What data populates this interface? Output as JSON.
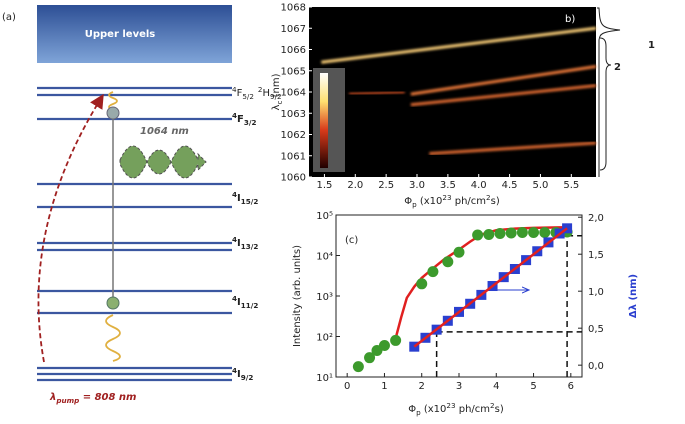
{
  "diagram": {
    "label": "(a)",
    "upper": "Upper levels",
    "emission": "1064 nm",
    "levels": [
      [
        {
          "text": "4",
          "pos": "sup"
        },
        {
          "text": "F"
        },
        {
          "text": "5/2",
          "pos": "sub"
        },
        {
          "text": "2",
          "pos": "sup"
        },
        {
          "text": "H"
        },
        {
          "text": "9/2",
          "pos": "sub"
        }
      ],
      [
        {
          "text": "4",
          "pos": "sup"
        },
        {
          "text": "F"
        },
        {
          "text": "3/2",
          "pos": "sub"
        }
      ],
      [
        {
          "text": "4",
          "pos": "sup"
        },
        {
          "text": "I"
        },
        {
          "text": "15/2",
          "pos": "sub"
        }
      ],
      [
        {
          "text": "4",
          "pos": "sup"
        },
        {
          "text": "I"
        },
        {
          "text": "13/2",
          "pos": "sub"
        }
      ],
      [
        {
          "text": "4",
          "pos": "sup"
        },
        {
          "text": "I"
        },
        {
          "text": "11/2",
          "pos": "sub"
        }
      ],
      [
        {
          "text": "4",
          "pos": "sup"
        },
        {
          "text": "I"
        },
        {
          "text": "9/2",
          "pos": "sub"
        }
      ]
    ],
    "pump": [
      {
        "text": "λ"
      },
      {
        "text": "pump",
        "pos": "sub"
      },
      {
        "text": " = 808 nm"
      }
    ]
  },
  "chart_data": [
    {
      "type": "heatmap",
      "label": "b)",
      "xlabel": [
        {
          "text": "Φ"
        },
        {
          "text": "p",
          "pos": "sub"
        },
        {
          "text": " (x10"
        },
        {
          "text": "23",
          "pos": "sup"
        },
        {
          "text": " ph/cm"
        },
        {
          "text": "2",
          "pos": "sup"
        },
        {
          "text": "s)"
        }
      ],
      "ylabel": [
        {
          "text": "λ"
        },
        {
          "text": "c",
          "pos": "sub"
        },
        {
          "text": " (nm)"
        }
      ],
      "xlim": [
        1.25,
        5.9
      ],
      "ylim": [
        1060,
        1068
      ],
      "xticks": [
        1.5,
        {
          "value": 2,
          "label": "2.0"
        },
        2.5,
        {
          "value": 3,
          "label": "3.0"
        },
        3.5,
        {
          "value": 4,
          "label": "4.0"
        },
        4.5,
        {
          "value": 5,
          "label": "5.0"
        },
        5.5
      ],
      "yticks": [
        1060,
        1061,
        1062,
        1063,
        1064,
        1065,
        1066,
        1067,
        1068
      ],
      "series": [
        {
          "color": "#ffd27a",
          "x": [
            1.45,
            5.9
          ],
          "values": [
            1065.4,
            1067.0
          ]
        },
        {
          "color": "#a8401f",
          "x": [
            1.9,
            2.8
          ],
          "values": [
            1063.9,
            1064.0
          ]
        },
        {
          "color": "#ee7a3a",
          "x": [
            2.9,
            5.9
          ],
          "values": [
            1063.9,
            1065.2
          ]
        },
        {
          "color": "#e06a30",
          "x": [
            2.9,
            5.9
          ],
          "values": [
            1063.4,
            1064.3
          ]
        },
        {
          "color": "#e06a30",
          "x": [
            3.2,
            5.9
          ],
          "values": [
            1061.1,
            1061.6
          ]
        }
      ],
      "annotations": [
        "1",
        "2"
      ]
    },
    {
      "type": "scatter",
      "label": "(c)",
      "xlabel": [
        {
          "text": "Φ"
        },
        {
          "text": "p",
          "pos": "sub"
        },
        {
          "text": " (x10"
        },
        {
          "text": "23",
          "pos": "sup"
        },
        {
          "text": " ph/cm"
        },
        {
          "text": "2",
          "pos": "sup"
        },
        {
          "text": "s)"
        }
      ],
      "ylabel": "Intensity (arb. units)",
      "y2label": "Δλ (nm)",
      "xlim": [
        -0.3,
        6.3
      ],
      "ylim": [
        10,
        100000
      ],
      "yscale": "log",
      "y2lim": [
        -0.16,
        2.03
      ],
      "xticks": [
        0,
        1,
        2,
        3,
        4,
        5,
        6
      ],
      "yticks": [
        {
          "value": 10,
          "label": "10¹"
        },
        {
          "value": 100,
          "label": "10²"
        },
        {
          "value": 1000,
          "label": "10³"
        },
        {
          "value": 10000,
          "label": "10⁴"
        },
        {
          "value": 100000,
          "label": "10⁵"
        }
      ],
      "y2ticks": [
        {
          "value": 0,
          "label": "0,0"
        },
        {
          "value": 0.5,
          "label": "0,5"
        },
        {
          "value": 1,
          "label": "1,0"
        },
        {
          "value": 1.5,
          "label": "1,5"
        },
        {
          "value": 2,
          "label": "2,0"
        }
      ],
      "series": [
        {
          "marker": "line",
          "color": "#e02020",
          "x": [
            1.3,
            1.45,
            1.6,
            1.8,
            2.0,
            2.3,
            2.6,
            3.0,
            3.3,
            3.6,
            4.0,
            4.5,
            5.0,
            5.5,
            5.9
          ],
          "values": [
            90,
            300,
            900,
            1700,
            2800,
            4800,
            8000,
            14000,
            22000,
            33000,
            42000,
            46000,
            48000,
            49000,
            50000
          ]
        },
        {
          "marker": "circle",
          "color": "#3c9a2c",
          "x": [
            0.3,
            0.6,
            0.8,
            1.0,
            1.3,
            2.0,
            2.3,
            2.7,
            3.0,
            3.5,
            3.8,
            4.1,
            4.4,
            4.7,
            5.0,
            5.3,
            5.6,
            5.9
          ],
          "values": [
            18,
            30,
            45,
            60,
            80,
            2000,
            4000,
            7000,
            12000,
            32000,
            33000,
            35000,
            36000,
            37000,
            37000,
            37000,
            37000,
            38000
          ]
        },
        {
          "marker": "square",
          "axis": "y2",
          "color": "#2a3fcf",
          "x": [
            1.8,
            2.1,
            2.4,
            2.7,
            3.0,
            3.3,
            3.6,
            3.9,
            4.2,
            4.5,
            4.8,
            5.1,
            5.4,
            5.7,
            5.9
          ],
          "values": [
            0.25,
            0.37,
            0.48,
            0.6,
            0.72,
            0.83,
            0.95,
            1.07,
            1.19,
            1.3,
            1.42,
            1.54,
            1.66,
            1.78,
            1.85
          ]
        },
        {
          "marker": "line",
          "axis": "y2",
          "color": "#e02020",
          "x": [
            1.8,
            5.9
          ],
          "values": [
            0.25,
            1.85
          ]
        }
      ],
      "guides": [
        {
          "x": 2.4,
          "y": 0.45
        },
        {
          "x": 5.9,
          "y": 1.75
        }
      ]
    }
  ]
}
